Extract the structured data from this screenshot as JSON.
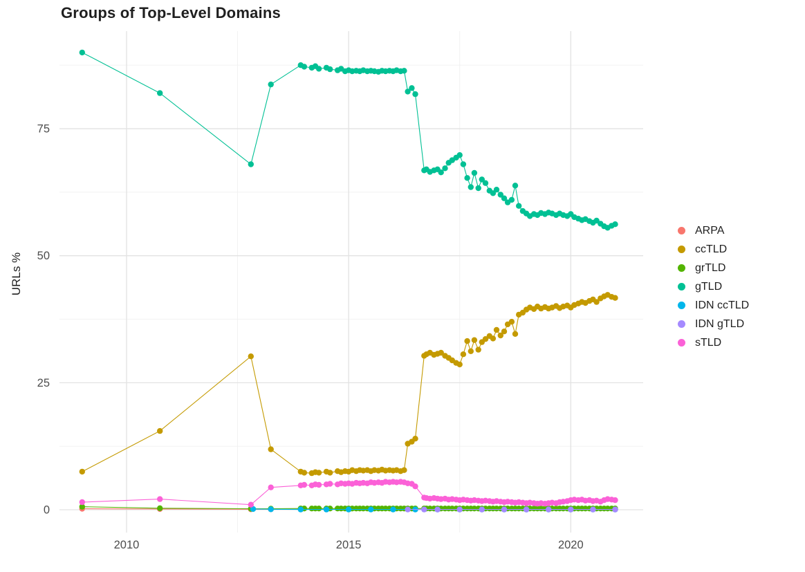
{
  "chart_data": {
    "type": "line",
    "title": "Groups of Top-Level Domains",
    "xlabel": "",
    "ylabel": "URLs %",
    "xlim": [
      2008.49,
      2021.63
    ],
    "ylim": [
      -4.49,
      94.2
    ],
    "x_ticks": [
      2010,
      2015,
      2020
    ],
    "x_tick_labels": [
      "2010",
      "2015",
      "2020"
    ],
    "y_ticks": [
      0,
      25,
      50,
      75
    ],
    "y_tick_labels": [
      "0",
      "25",
      "50",
      "75"
    ],
    "x_minor": [
      2012.5,
      2017.5
    ],
    "y_minor": [
      12.5,
      37.5,
      62.5,
      87.5
    ],
    "grid": true,
    "legend_position": "right",
    "x": [
      2009.0,
      2010.75,
      2012.8,
      2013.25,
      2013.92,
      2014.0,
      2014.17,
      2014.25,
      2014.33,
      2014.5,
      2014.58,
      2014.75,
      2014.83,
      2014.92,
      2015.0,
      2015.08,
      2015.17,
      2015.25,
      2015.33,
      2015.42,
      2015.5,
      2015.58,
      2015.67,
      2015.75,
      2015.83,
      2015.92,
      2016.0,
      2016.08,
      2016.17,
      2016.25,
      2016.33,
      2016.42,
      2016.5,
      2016.7,
      2016.75,
      2016.83,
      2016.92,
      2017.0,
      2017.08,
      2017.17,
      2017.25,
      2017.33,
      2017.42,
      2017.5,
      2017.58,
      2017.67,
      2017.75,
      2017.83,
      2017.92,
      2018.0,
      2018.08,
      2018.17,
      2018.25,
      2018.33,
      2018.42,
      2018.5,
      2018.58,
      2018.67,
      2018.75,
      2018.83,
      2018.92,
      2019.0,
      2019.08,
      2019.17,
      2019.25,
      2019.33,
      2019.42,
      2019.5,
      2019.58,
      2019.67,
      2019.75,
      2019.83,
      2019.92,
      2020.0,
      2020.08,
      2020.17,
      2020.25,
      2020.33,
      2020.42,
      2020.5,
      2020.58,
      2020.67,
      2020.75,
      2020.83,
      2020.92,
      2021.0
    ],
    "series": [
      {
        "name": "ARPA",
        "color": "#F8766D",
        "x": [
          2009.0,
          2010.75,
          2012.8,
          2013.25,
          2013.92,
          2014.5,
          2015.0,
          2015.5,
          2016.0,
          2016.5,
          2017.0,
          2017.5,
          2018.0,
          2018.5,
          2019.0,
          2019.5,
          2020.0,
          2020.5,
          2021.0
        ],
        "y": [
          0.2,
          0.15,
          0.1,
          0.1,
          0.1,
          0.1,
          0.1,
          0.1,
          0.1,
          0.1,
          0.1,
          0.1,
          0.1,
          0.1,
          0.1,
          0.1,
          0.1,
          0.1,
          0.1
        ]
      },
      {
        "name": "ccTLD",
        "color": "#C49A00",
        "y": [
          7.5,
          15.5,
          30.2,
          11.9,
          7.5,
          7.3,
          7.2,
          7.4,
          7.3,
          7.5,
          7.3,
          7.6,
          7.4,
          7.6,
          7.5,
          7.8,
          7.6,
          7.8,
          7.7,
          7.8,
          7.6,
          7.8,
          7.7,
          7.9,
          7.7,
          7.8,
          7.7,
          7.8,
          7.6,
          7.8,
          13.0,
          13.4,
          14.0,
          30.3,
          30.6,
          30.9,
          30.5,
          30.7,
          30.9,
          30.3,
          29.9,
          29.4,
          28.9,
          28.6,
          30.6,
          33.2,
          31.2,
          33.4,
          31.5,
          33.0,
          33.6,
          34.2,
          33.7,
          35.4,
          34.3,
          35.1,
          36.5,
          37.0,
          34.6,
          38.4,
          38.8,
          39.4,
          39.8,
          39.5,
          40.0,
          39.6,
          39.9,
          39.6,
          39.8,
          40.1,
          39.7,
          40.0,
          40.2,
          39.8,
          40.3,
          40.6,
          40.9,
          40.7,
          41.1,
          41.4,
          40.9,
          41.6,
          42.0,
          42.3,
          41.9,
          41.7
        ]
      },
      {
        "name": "grTLD",
        "color": "#53B400",
        "y": [
          0.6,
          0.3,
          0.2,
          0.2,
          0.25,
          0.25,
          0.25,
          0.25,
          0.25,
          0.25,
          0.25,
          0.25,
          0.25,
          0.25,
          0.25,
          0.25,
          0.25,
          0.25,
          0.25,
          0.25,
          0.25,
          0.25,
          0.25,
          0.25,
          0.25,
          0.25,
          0.25,
          0.25,
          0.25,
          0.25,
          0.25,
          0.25,
          0.25,
          0.25,
          0.25,
          0.25,
          0.25,
          0.25,
          0.25,
          0.25,
          0.25,
          0.25,
          0.25,
          0.25,
          0.25,
          0.25,
          0.25,
          0.25,
          0.25,
          0.25,
          0.25,
          0.25,
          0.25,
          0.25,
          0.25,
          0.25,
          0.25,
          0.25,
          0.25,
          0.25,
          0.25,
          0.25,
          0.25,
          0.25,
          0.25,
          0.25,
          0.25,
          0.25,
          0.25,
          0.25,
          0.25,
          0.25,
          0.25,
          0.25,
          0.25,
          0.25,
          0.25,
          0.25,
          0.25,
          0.25,
          0.25,
          0.25,
          0.25,
          0.25,
          0.25,
          0.25
        ]
      },
      {
        "name": "gTLD",
        "color": "#00C094",
        "y": [
          90.0,
          82.0,
          68.0,
          83.7,
          87.5,
          87.2,
          87.0,
          87.3,
          86.8,
          87.0,
          86.7,
          86.5,
          86.8,
          86.3,
          86.5,
          86.3,
          86.4,
          86.3,
          86.5,
          86.3,
          86.4,
          86.3,
          86.2,
          86.4,
          86.3,
          86.4,
          86.3,
          86.5,
          86.3,
          86.4,
          82.3,
          83.0,
          81.8,
          66.8,
          67.0,
          66.5,
          66.8,
          67.0,
          66.4,
          67.2,
          68.3,
          68.8,
          69.3,
          69.8,
          68.0,
          65.3,
          63.5,
          66.3,
          63.3,
          65.0,
          64.3,
          62.8,
          62.3,
          63.0,
          62.0,
          61.3,
          60.5,
          61.0,
          63.8,
          59.8,
          58.8,
          58.3,
          57.8,
          58.2,
          58.0,
          58.4,
          58.2,
          58.5,
          58.3,
          58.0,
          58.3,
          58.0,
          57.8,
          58.2,
          57.6,
          57.3,
          57.0,
          57.2,
          56.8,
          56.5,
          56.9,
          56.3,
          55.8,
          55.5,
          55.9,
          56.2
        ]
      },
      {
        "name": "IDN ccTLD",
        "color": "#00B6EB",
        "x": [
          2012.85,
          2013.25,
          2013.92,
          2014.5,
          2015.0,
          2015.5,
          2016.0,
          2016.5,
          2017.0,
          2017.5,
          2018.0,
          2018.5,
          2019.0,
          2019.5,
          2020.0,
          2020.5,
          2021.0
        ],
        "y": [
          0.15,
          0.1,
          0.05,
          0.05,
          0.05,
          0.05,
          0.05,
          0.05,
          0.05,
          0.05,
          0.05,
          0.05,
          0.05,
          0.05,
          0.05,
          0.05,
          0.05
        ]
      },
      {
        "name": "IDN gTLD",
        "color": "#A58AFF",
        "x": [
          2016.33,
          2016.7,
          2017.0,
          2017.5,
          2018.0,
          2018.5,
          2019.0,
          2019.5,
          2020.0,
          2020.5,
          2021.0
        ],
        "y": [
          0.05,
          0.05,
          0.05,
          0.05,
          0.05,
          0.05,
          0.05,
          0.05,
          0.05,
          0.05,
          0.05
        ]
      },
      {
        "name": "sTLD",
        "color": "#FB61D7",
        "y": [
          1.5,
          2.1,
          1.0,
          4.4,
          4.8,
          4.9,
          4.8,
          5.0,
          4.9,
          5.0,
          5.1,
          5.0,
          5.2,
          5.1,
          5.2,
          5.1,
          5.3,
          5.2,
          5.3,
          5.2,
          5.4,
          5.3,
          5.4,
          5.3,
          5.5,
          5.4,
          5.5,
          5.4,
          5.5,
          5.4,
          5.2,
          5.1,
          4.6,
          2.4,
          2.3,
          2.2,
          2.3,
          2.2,
          2.1,
          2.2,
          2.0,
          2.1,
          2.0,
          1.9,
          2.0,
          1.9,
          1.8,
          1.9,
          1.8,
          1.7,
          1.8,
          1.7,
          1.6,
          1.7,
          1.6,
          1.5,
          1.6,
          1.5,
          1.4,
          1.5,
          1.4,
          1.3,
          1.4,
          1.3,
          1.2,
          1.3,
          1.2,
          1.3,
          1.4,
          1.3,
          1.5,
          1.6,
          1.7,
          1.9,
          2.0,
          1.9,
          2.0,
          1.8,
          1.9,
          1.7,
          1.8,
          1.6,
          1.9,
          2.1,
          2.0,
          1.9
        ]
      }
    ]
  }
}
